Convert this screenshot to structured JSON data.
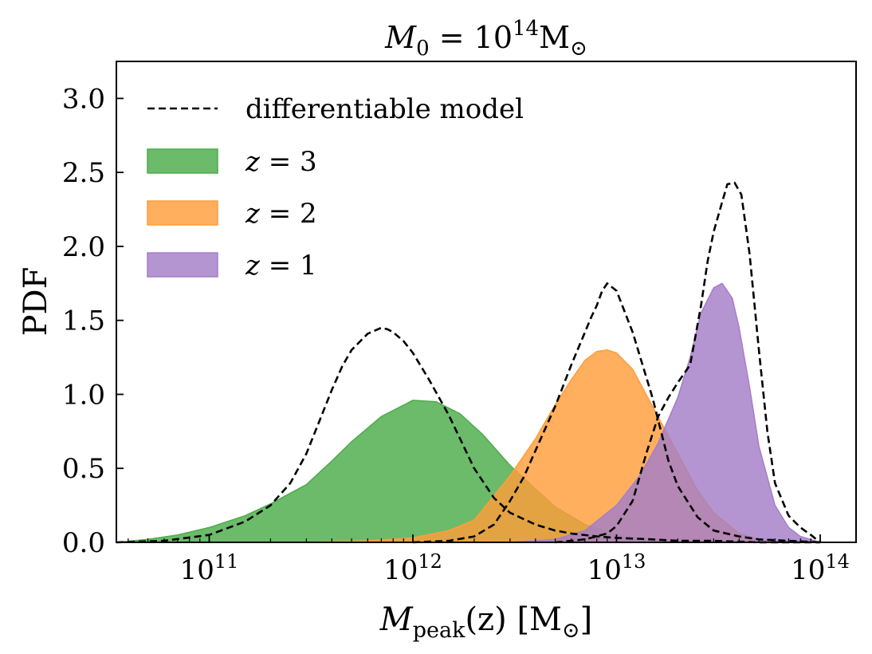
{
  "chart_data": {
    "type": "area",
    "title": {
      "main": "M",
      "sub": "0",
      "eq": " = 10",
      "sup": "14",
      "unit": "M",
      "sun": "⊙"
    },
    "xlabel": {
      "main": "M",
      "sub": "peak",
      "rest": "(z) [M",
      "unit_sub": "⊙",
      "close": "]"
    },
    "ylabel": "PDF",
    "xscale": "log",
    "xlim": [
      35000000000.0,
      150000000000000.0
    ],
    "ylim": [
      0,
      3.25
    ],
    "xticks": [
      {
        "value": 100000000000.0,
        "base": "10",
        "exp": "11"
      },
      {
        "value": 1000000000000.0,
        "base": "10",
        "exp": "12"
      },
      {
        "value": 10000000000000.0,
        "base": "10",
        "exp": "13"
      },
      {
        "value": 100000000000000.0,
        "base": "10",
        "exp": "14"
      }
    ],
    "yticks": [
      {
        "value": 0.0,
        "label": "0.0"
      },
      {
        "value": 0.5,
        "label": "0.5"
      },
      {
        "value": 1.0,
        "label": "1.0"
      },
      {
        "value": 1.5,
        "label": "1.5"
      },
      {
        "value": 2.0,
        "label": "2.0"
      },
      {
        "value": 2.5,
        "label": "2.5"
      },
      {
        "value": 3.0,
        "label": "3.0"
      }
    ],
    "legend_position": "top-left",
    "grid": false,
    "series": [
      {
        "name": "z = 3",
        "kind": "area",
        "color": "#4cac4a",
        "x": [
          35000000000.0,
          50000000000.0,
          70000000000.0,
          100000000000.0,
          150000000000.0,
          200000000000.0,
          300000000000.0,
          400000000000.0,
          500000000000.0,
          700000000000.0,
          1000000000000.0,
          1300000000000.0,
          1700000000000.0,
          2200000000000.0,
          3000000000000.0,
          4000000000000.0,
          5000000000000.0,
          7000000000000.0,
          10000000000000.0,
          15000000000000.0,
          20000000000000.0,
          30000000000000.0
        ],
        "y": [
          0.0,
          0.02,
          0.05,
          0.1,
          0.18,
          0.26,
          0.39,
          0.55,
          0.68,
          0.85,
          0.96,
          0.95,
          0.87,
          0.73,
          0.52,
          0.36,
          0.24,
          0.12,
          0.05,
          0.02,
          0.01,
          0.0
        ]
      },
      {
        "name": "z = 2",
        "kind": "area",
        "color": "#ff9d3a",
        "x": [
          100000000000.0,
          300000000000.0,
          600000000000.0,
          1000000000000.0,
          1500000000000.0,
          2000000000000.0,
          3000000000000.0,
          4000000000000.0,
          5000000000000.0,
          6000000000000.0,
          7000000000000.0,
          8000000000000.0,
          9000000000000.0,
          10000000000000.0,
          12000000000000.0,
          15000000000000.0,
          20000000000000.0,
          25000000000000.0,
          30000000000000.0,
          40000000000000.0,
          50000000000000.0,
          60000000000000.0
        ],
        "y": [
          0.0,
          0.0,
          0.01,
          0.03,
          0.08,
          0.15,
          0.45,
          0.7,
          0.93,
          1.1,
          1.23,
          1.29,
          1.3,
          1.28,
          1.17,
          0.92,
          0.6,
          0.35,
          0.2,
          0.06,
          0.02,
          0.0
        ]
      },
      {
        "name": "z = 1",
        "kind": "area",
        "color": "#a47ec8",
        "x": [
          3000000000000.0,
          5000000000000.0,
          7000000000000.0,
          10000000000000.0,
          13000000000000.0,
          16000000000000.0,
          20000000000000.0,
          23000000000000.0,
          26000000000000.0,
          30000000000000.0,
          33000000000000.0,
          37000000000000.0,
          40000000000000.0,
          45000000000000.0,
          50000000000000.0,
          60000000000000.0,
          70000000000000.0,
          80000000000000.0,
          100000000000000.0
        ],
        "y": [
          0.0,
          0.02,
          0.08,
          0.25,
          0.45,
          0.67,
          0.98,
          1.25,
          1.55,
          1.72,
          1.75,
          1.65,
          1.45,
          1.05,
          0.65,
          0.25,
          0.1,
          0.04,
          0.0
        ]
      },
      {
        "name": "differentiable model",
        "kind": "dashed-line",
        "color": "#000000",
        "segments": [
          {
            "x": [
              35000000000.0,
              60000000000.0,
              100000000000.0,
              150000000000.0,
              200000000000.0,
              250000000000.0,
              300000000000.0,
              350000000000.0,
              400000000000.0,
              450000000000.0,
              500000000000.0,
              600000000000.0,
              700000000000.0,
              750000000000.0,
              800000000000.0,
              900000000000.0,
              1000000000000.0,
              1200000000000.0,
              1500000000000.0,
              2000000000000.0,
              2500000000000.0,
              3000000000000.0,
              4000000000000.0,
              5000000000000.0,
              6000000000000.0,
              8000000000000.0,
              10000000000000.0,
              15000000000000.0,
              20000000000000.0,
              30000000000000.0,
              50000000000000.0,
              70000000000000.0,
              100000000000000.0
            ],
            "y": [
              0.0,
              0.01,
              0.05,
              0.14,
              0.25,
              0.4,
              0.6,
              0.83,
              1.03,
              1.19,
              1.3,
              1.41,
              1.45,
              1.44,
              1.42,
              1.36,
              1.28,
              1.1,
              0.86,
              0.5,
              0.3,
              0.2,
              0.12,
              0.08,
              0.06,
              0.04,
              0.03,
              0.02,
              0.01,
              0.01,
              0.0,
              0.0,
              0.0
            ]
          },
          {
            "x": [
              1000000000000.0,
              1500000000000.0,
              2000000000000.0,
              2500000000000.0,
              3000000000000.0,
              3500000000000.0,
              4000000000000.0,
              5000000000000.0,
              6000000000000.0,
              7000000000000.0,
              7500000000000.0,
              8000000000000.0,
              8500000000000.0,
              9000000000000.0,
              10000000000000.0,
              12000000000000.0,
              15000000000000.0,
              18000000000000.0,
              20000000000000.0,
              25000000000000.0,
              30000000000000.0,
              40000000000000.0,
              50000000000000.0,
              70000000000000.0,
              100000000000000.0
            ],
            "y": [
              0.0,
              0.01,
              0.04,
              0.12,
              0.28,
              0.44,
              0.62,
              0.92,
              1.2,
              1.42,
              1.52,
              1.6,
              1.7,
              1.75,
              1.7,
              1.42,
              0.98,
              0.55,
              0.38,
              0.17,
              0.08,
              0.04,
              0.02,
              0.01,
              0.0
            ]
          },
          {
            "x": [
              5000000000000.0,
              7000000000000.0,
              9000000000000.0,
              10000000000000.0,
              12000000000000.0,
              14000000000000.0,
              16000000000000.0,
              18000000000000.0,
              20000000000000.0,
              23000000000000.0,
              26000000000000.0,
              28000000000000.0,
              30000000000000.0,
              33000000000000.0,
              35000000000000.0,
              38000000000000.0,
              41000000000000.0,
              45000000000000.0,
              50000000000000.0,
              55000000000000.0,
              60000000000000.0,
              70000000000000.0,
              80000000000000.0,
              90000000000000.0,
              100000000000000.0
            ],
            "y": [
              0.0,
              0.02,
              0.06,
              0.11,
              0.28,
              0.6,
              0.85,
              0.98,
              1.08,
              1.2,
              1.6,
              1.9,
              2.1,
              2.3,
              2.42,
              2.43,
              2.35,
              1.95,
              1.3,
              0.75,
              0.4,
              0.18,
              0.1,
              0.05,
              0.0
            ]
          }
        ]
      }
    ],
    "legend": [
      {
        "kind": "dashed-line",
        "color": "#000000",
        "label": "differentiable model"
      },
      {
        "kind": "patch",
        "color": "#4cac4a",
        "label": "z = 3",
        "var": "z",
        "eq": " = 3"
      },
      {
        "kind": "patch",
        "color": "#ff9d3a",
        "label": "z = 2",
        "var": "z",
        "eq": " = 2"
      },
      {
        "kind": "patch",
        "color": "#a47ec8",
        "label": "z = 1",
        "var": "z",
        "eq": " = 1"
      }
    ]
  }
}
